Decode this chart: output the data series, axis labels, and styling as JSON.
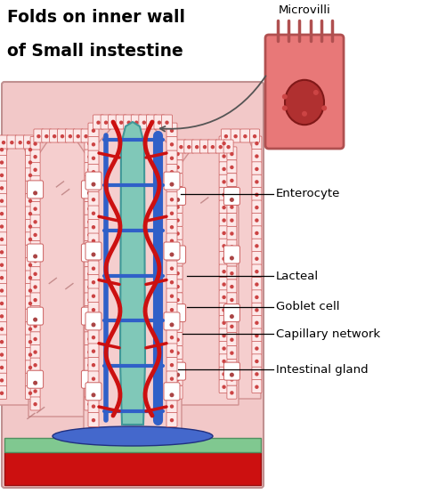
{
  "title_line1": "Folds on inner wall",
  "title_line2": "of Small instestine",
  "microvilli_label": "Microvilli",
  "bg_color": "#ffffff",
  "tissue_bg_color": "#f2c8c8",
  "villus_fill": "#f5cece",
  "villus_edge": "#d09090",
  "lacteal_color": "#80c8b8",
  "blue_cap_color": "#3060c8",
  "red_vessel_color": "#cc1010",
  "cell_fill": "#ffffff",
  "cell_edge": "#cc6060",
  "goblet_fill": "#f0e8e0",
  "base_red": "#cc1010",
  "base_green": "#80c890",
  "base_blue": "#4468cc",
  "inset_cell_fill": "#e87878",
  "inset_nucleus_fill": "#b03030",
  "inset_edge": "#b05050",
  "dark_marks": "#994444"
}
